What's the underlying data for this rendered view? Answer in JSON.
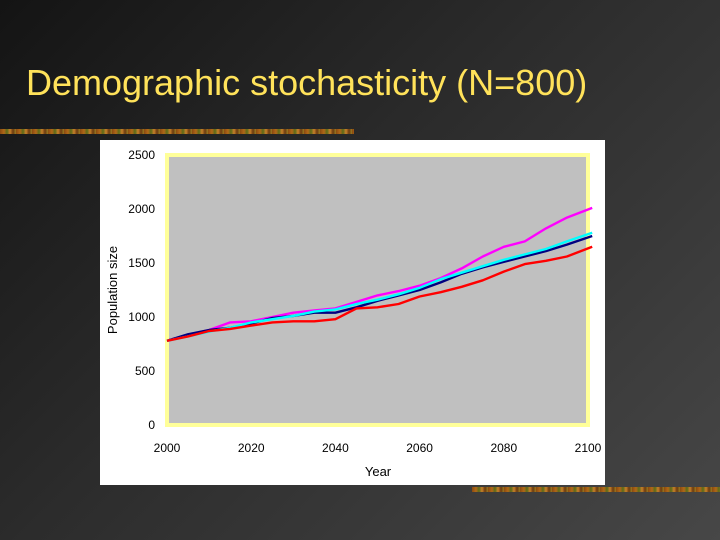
{
  "slide": {
    "title": "Demographic stochasticity (N=800)"
  },
  "chart_data": {
    "type": "line",
    "title": "",
    "xlabel": "Year",
    "ylabel": "Population size",
    "xlim": [
      2000,
      2100
    ],
    "ylim": [
      0,
      2500
    ],
    "xticks": [
      "2000",
      "2020",
      "2040",
      "2060",
      "2080",
      "2100"
    ],
    "yticks": [
      "0",
      "500",
      "1000",
      "1500",
      "2000",
      "2500"
    ],
    "xtick_values": [
      2000,
      2020,
      2040,
      2060,
      2080,
      2100
    ],
    "ytick_values": [
      0,
      500,
      1000,
      1500,
      2000,
      2500
    ],
    "grid": false,
    "legend": "none",
    "plot_background": "#c0c0c0",
    "plot_border_color": "#ffff99",
    "x": [
      2000,
      2005,
      2010,
      2015,
      2020,
      2025,
      2030,
      2035,
      2040,
      2045,
      2050,
      2055,
      2060,
      2065,
      2070,
      2075,
      2080,
      2085,
      2090,
      2095,
      2101
    ],
    "series": [
      {
        "color": "#ff00ff",
        "values": [
          780,
          835,
          880,
          950,
          960,
          1000,
          1040,
          1060,
          1080,
          1140,
          1200,
          1240,
          1290,
          1360,
          1450,
          1560,
          1650,
          1700,
          1820,
          1920,
          2010
        ]
      },
      {
        "color": "#000080",
        "values": [
          780,
          840,
          880,
          900,
          940,
          990,
          1010,
          1040,
          1040,
          1090,
          1150,
          1200,
          1250,
          1320,
          1400,
          1460,
          1510,
          1560,
          1610,
          1670,
          1750
        ]
      },
      {
        "color": "#00ffff",
        "values": [
          780,
          820,
          865,
          900,
          950,
          980,
          1010,
          1050,
          1070,
          1120,
          1160,
          1210,
          1270,
          1350,
          1410,
          1470,
          1530,
          1580,
          1630,
          1700,
          1780
        ]
      },
      {
        "color": "#ff0000",
        "values": [
          780,
          820,
          870,
          890,
          920,
          950,
          960,
          960,
          980,
          1080,
          1090,
          1120,
          1190,
          1230,
          1280,
          1340,
          1420,
          1490,
          1520,
          1560,
          1650
        ]
      }
    ]
  }
}
